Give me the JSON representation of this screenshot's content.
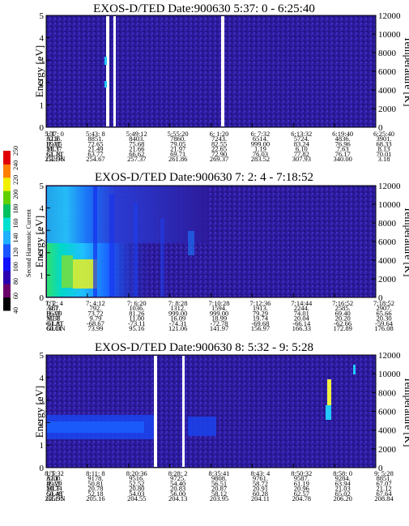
{
  "colorbar": {
    "label": "Second Harmonic Current",
    "ticks": [
      "40",
      "60",
      "80",
      "100",
      "120",
      "140",
      "160",
      "180",
      "200",
      "220",
      "240",
      "250"
    ],
    "colors": [
      "#000000",
      "#6a006a",
      "#2a00b0",
      "#1010ff",
      "#1a55ff",
      "#1fb0ff",
      "#00e0d0",
      "#00c060",
      "#60d000",
      "#f0f000",
      "#ff8000",
      "#e00000"
    ]
  },
  "panels": [
    {
      "title": "EXOS-D/TED   Date:900630  5:37: 0 - 6:25:40",
      "ylabel": "Energy [eV]",
      "y2label": "Temperature [K]",
      "yticks": [
        "0",
        "1",
        "2",
        "3",
        "4",
        "5"
      ],
      "y2ticks": [
        "0",
        "2000",
        "4000",
        "6000",
        "8000",
        "10000",
        "12000"
      ],
      "row_labels": [
        "UT",
        "ALT",
        "ILAT",
        "MLT",
        "GLAT",
        "GLON"
      ],
      "columns": [
        [
          "5:37: 0",
          "9216.",
          "69.85",
          "21.37",
          "61.10",
          "252.96"
        ],
        [
          "5:43: 8",
          "8851.",
          "72.65",
          "21.49",
          "63.77",
          "254.67"
        ],
        [
          "5:49:12",
          "8403.",
          "75.68",
          "21.66",
          "66.62",
          "257.37"
        ],
        [
          "5:55:20",
          "7860.",
          "79.05",
          "21.97",
          "69.71",
          "261.86"
        ],
        [
          "6: 1:20",
          "7243.",
          "82.55",
          "22.65",
          "72.90",
          "269.37"
        ],
        [
          "6: 7:32",
          "6514.",
          "999.00",
          "1.19",
          "76.03",
          "283.52"
        ],
        [
          "6:13:32",
          "5724.",
          "83.24",
          "6.10",
          "77.82",
          "307.93"
        ],
        [
          "6:19:40",
          "4836.",
          "76.96",
          "7.63",
          "76.17",
          "340.00"
        ],
        [
          "6:25:40",
          "3901.",
          "68.33",
          "8.13",
          "70.01",
          "3.18"
        ]
      ]
    },
    {
      "title": "EXOS-D/TED   Date:900630  7: 2: 4 - 7:18:52",
      "ylabel": "Energy [eV]",
      "y2label": "Temperature [K]",
      "yticks": [
        "0",
        "1",
        "2",
        "3",
        "4",
        "5"
      ],
      "y2ticks": [
        "0",
        "2000",
        "4000",
        "6000",
        "8000",
        "10000",
        "12000"
      ],
      "row_labels": [
        "UT",
        "ALT",
        "ILAT",
        "MLT",
        "GLAT",
        "GLON"
      ],
      "columns": [
        [
          "7: 2: 4",
          "387.",
          "66.09",
          "9.38",
          "-61.81",
          "60.01"
        ],
        [
          "7: 4:12",
          "792.",
          "73.72",
          "9.79",
          "-68.67",
          "73.99"
        ],
        [
          "7: 6:20",
          "1036.",
          "81.26",
          "11.00",
          "-73.11",
          "95.16"
        ],
        [
          "7: 8:28",
          "1312.",
          "999.00",
          "16.09",
          "-74.31",
          "121.06"
        ],
        [
          "7:10:28",
          "1594.",
          "999.00",
          "18.99",
          "-72.78",
          "141.97"
        ],
        [
          "7:12:36",
          "1913.",
          "79.29",
          "19.74",
          "-69.68",
          "156.97"
        ],
        [
          "7:14:44",
          "2244.",
          "74.01",
          "20.04",
          "-66.14",
          "166.33"
        ],
        [
          "7:16:52",
          "2585.",
          "69.40",
          "20.20",
          "-62.66",
          "172.89"
        ],
        [
          "7:18:52",
          "2907.",
          "65.66",
          "20.30",
          "-59.64",
          "176.08"
        ]
      ]
    },
    {
      "title": "EXOS-D/TED   Date:900630  8: 5:32 - 9: 5:28",
      "ylabel": "Energy [eV]",
      "y2label": "Temperature [K]",
      "yticks": [
        "0",
        "1",
        "2",
        "3",
        "4",
        "5"
      ],
      "y2ticks": [
        "0",
        "2000",
        "4000",
        "6000",
        "8000",
        "10000",
        "12000"
      ],
      "row_labels": [
        "UT",
        "ALT",
        "ILAT",
        "MLT",
        "GLAT",
        "GLON"
      ],
      "columns": [
        [
          "8: 5:32",
          "8700.",
          "49.29",
          "20.74",
          "50.48",
          "205.95"
        ],
        [
          "8:11: 8",
          "9178.",
          "50.81",
          "20.78",
          "52.18",
          "205.16"
        ],
        [
          "8:20:36",
          "9516.",
          "52.52",
          "20.80",
          "54.03",
          "204.55"
        ],
        [
          "8:28: 2",
          "9725.",
          "54.40",
          "20.83",
          "56.00",
          "204.13"
        ],
        [
          "8:35:41",
          "9808.",
          "56.51",
          "20.87",
          "58.12",
          "203.95"
        ],
        [
          "8:43: 4",
          "9761.",
          "58.72",
          "20.91",
          "60.28",
          "204.11"
        ],
        [
          "8:50:32",
          "9587.",
          "61.19",
          "20.96",
          "62.57",
          "204.78"
        ],
        [
          "8:58: 0",
          "9284.",
          "63.94",
          "21.03",
          "65.02",
          "206.20"
        ],
        [
          "9: 5:28",
          "8851.",
          "67.07",
          "21.12",
          "67.64",
          "208.84"
        ]
      ]
    }
  ],
  "chart_data": [
    {
      "type": "heatmap",
      "title": "EXOS-D/TED   Date:900630  5:37: 0 - 6:25:40",
      "ylabel": "Energy [eV]",
      "y2label": "Temperature [K]",
      "ylim": [
        0,
        5
      ],
      "y2lim": [
        0,
        12000
      ],
      "x_ticks": [
        "5:37: 0",
        "5:43: 8",
        "5:49:12",
        "5:55:20",
        "6: 1:20",
        "6: 7:32",
        "6:13:32",
        "6:19:40",
        "6:25:40"
      ],
      "data_gaps": [
        0.275,
        0.575
      ],
      "dominant_level": "80-100"
    },
    {
      "type": "heatmap",
      "title": "EXOS-D/TED   Date:900630  7: 2: 4 - 7:18:52",
      "ylabel": "Energy [eV]",
      "y2label": "Temperature [K]",
      "ylim": [
        0,
        5
      ],
      "y2lim": [
        0,
        12000
      ],
      "x_ticks": [
        "7: 2: 4",
        "7: 4:12",
        "7: 6:20",
        "7: 8:28",
        "7:10:28",
        "7:12:36",
        "7:14:44",
        "7:16:52",
        "7:18:52"
      ],
      "colorbar_range": [
        40,
        250
      ],
      "dominant_level": "80-100",
      "high_intensity_region": "low energy, start of interval (up to ~200)"
    },
    {
      "type": "heatmap",
      "title": "EXOS-D/TED   Date:900630  8: 5:32 - 9: 5:28",
      "ylabel": "Energy [eV]",
      "y2label": "Temperature [K]",
      "ylim": [
        0,
        5
      ],
      "y2lim": [
        0,
        12000
      ],
      "x_ticks": [
        "8: 5:32",
        "8:11: 8",
        "8:20:36",
        "8:28: 2",
        "8:35:41",
        "8:43: 4",
        "8:50:32",
        "8:58: 0",
        "9: 5:28"
      ],
      "data_gaps": [
        0.37,
        0.405
      ],
      "dominant_level": "80-100"
    }
  ]
}
